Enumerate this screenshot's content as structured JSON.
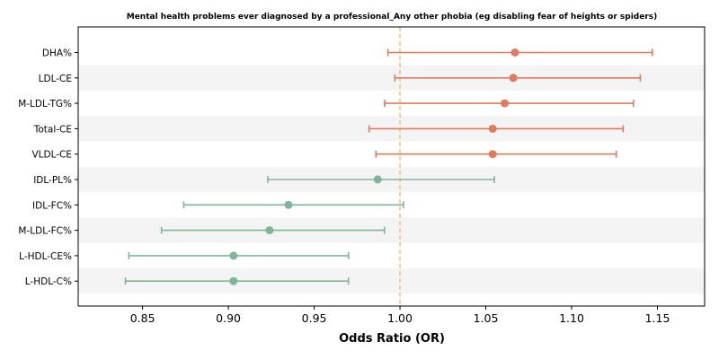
{
  "chart_data": {
    "type": "forest",
    "title": "Mental health problems ever diagnosed by a professional_Any other phobia (eg disabling fear of heights or spiders)",
    "xlabel": "Odds Ratio (OR)",
    "xlim": [
      0.8125,
      1.1775
    ],
    "xticks": [
      0.85,
      0.9,
      0.95,
      1.0,
      1.05,
      1.1,
      1.15
    ],
    "xtick_labels": [
      "0.85",
      "0.90",
      "0.95",
      "1.00",
      "1.05",
      "1.10",
      "1.15"
    ],
    "reference_line": 1.0,
    "colors": {
      "positive": "#e07b5f",
      "negative": "#7fb69b",
      "reference": "#f5c27a",
      "band": "#f4f4f4"
    },
    "rows": [
      {
        "label": "DHA%",
        "or": 1.067,
        "lo": 0.993,
        "hi": 1.147
      },
      {
        "label": "LDL-CE",
        "or": 1.066,
        "lo": 0.997,
        "hi": 1.14
      },
      {
        "label": "M-LDL-TG%",
        "or": 1.061,
        "lo": 0.991,
        "hi": 1.136
      },
      {
        "label": "Total-CE",
        "or": 1.054,
        "lo": 0.982,
        "hi": 1.13
      },
      {
        "label": "VLDL-CE",
        "or": 1.054,
        "lo": 0.986,
        "hi": 1.126
      },
      {
        "label": "IDL-PL%",
        "or": 0.987,
        "lo": 0.923,
        "hi": 1.055
      },
      {
        "label": "IDL-FC%",
        "or": 0.935,
        "lo": 0.874,
        "hi": 1.002
      },
      {
        "label": "M-LDL-FC%",
        "or": 0.924,
        "lo": 0.861,
        "hi": 0.991
      },
      {
        "label": "L-HDL-CE%",
        "or": 0.903,
        "lo": 0.842,
        "hi": 0.97
      },
      {
        "label": "L-HDL-C%",
        "or": 0.903,
        "lo": 0.84,
        "hi": 0.97
      }
    ]
  }
}
